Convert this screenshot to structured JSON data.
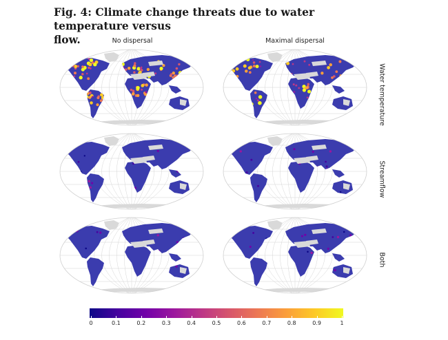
{
  "figure": {
    "title_line1": "Fig. 4: Climate change threats due to water temperature versus",
    "title_line2": "flow."
  },
  "columns": [
    "No dispersal",
    "Maximal dispersal"
  ],
  "rows": [
    "Water temperature",
    "Streamflow",
    "Both"
  ],
  "colorbar": {
    "ticks": [
      "0",
      "0.1",
      "0.2",
      "0.3",
      "0.4",
      "0.5",
      "0.6",
      "0.7",
      "0.8",
      "0.9",
      "1"
    ],
    "colors": [
      "#0d0887",
      "#46039f",
      "#7201a8",
      "#9c179e",
      "#bd3786",
      "#d8576b",
      "#ed7953",
      "#fb9f3a",
      "#fdca26",
      "#f0f921"
    ]
  },
  "colors": {
    "land_base": "#3b3cae",
    "no_data": "#d9d9d9",
    "graticule": "#d4d4d4"
  }
}
